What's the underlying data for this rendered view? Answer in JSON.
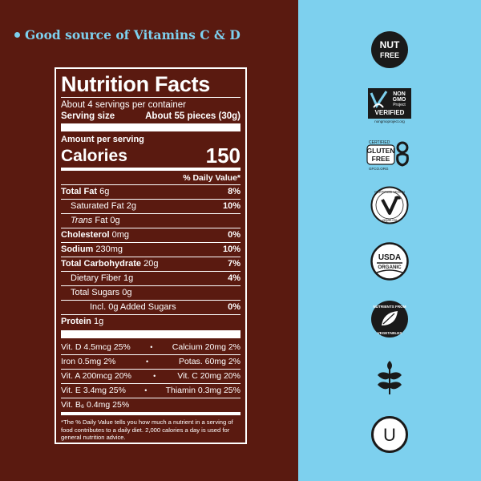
{
  "headline": "Good source of Vitamins C & D",
  "nutrition": {
    "title": "Nutrition Facts",
    "servings_per_container": "About 4 servings per container",
    "serving_size_label": "Serving size",
    "serving_size_value": "About 55 pieces (30g)",
    "amount_per_serving": "Amount per serving",
    "calories_label": "Calories",
    "calories_value": "150",
    "daily_value_header": "% Daily Value*",
    "rows": [
      {
        "name": "Total Fat",
        "amount": "6g",
        "dv": "8%"
      },
      {
        "name": "Saturated Fat",
        "amount": "2g",
        "dv": "10%"
      },
      {
        "name": "Trans",
        "name_suffix": "Fat",
        "amount": "0g",
        "dv": ""
      },
      {
        "name": "Cholesterol",
        "amount": "0mg",
        "dv": "0%"
      },
      {
        "name": "Sodium",
        "amount": "230mg",
        "dv": "10%"
      },
      {
        "name": "Total Carbohydrate",
        "amount": "20g",
        "dv": "7%"
      },
      {
        "name": "Dietary Fiber",
        "amount": "1g",
        "dv": "4%"
      },
      {
        "name": "Total Sugars",
        "amount": "0g",
        "dv": ""
      },
      {
        "name": "Incl. 0g Added Sugars",
        "amount": "",
        "dv": "0%"
      },
      {
        "name": "Protein",
        "amount": "1g",
        "dv": ""
      }
    ],
    "vitamins": [
      {
        "left": "Vit. D 4.5mcg 25%",
        "right": "Calcium 20mg 2%"
      },
      {
        "left": "Iron 0.5mg 2%",
        "right": "Potas. 60mg 2%"
      },
      {
        "left": "Vit. A 200mcg 20%",
        "right": "Vit. C 20mg 20%"
      },
      {
        "left": "Vit. E 3.4mg 25%",
        "right": "Thiamin 0.3mg 25%"
      },
      {
        "left": "Vit. B₆ 0.4mg 25%",
        "right": ""
      }
    ],
    "bullet": "•",
    "footnote": "*The % Daily Value tells you how much a nutrient in a serving of food contributes to a daily diet. 2,000 calories a day is used for general nutrition advice."
  },
  "badges": {
    "nut_free": {
      "line1": "NUT",
      "line2": "FREE"
    },
    "non_gmo": {
      "line1": "NON",
      "line2": "GMO",
      "line3": "Project",
      "line4": "VERIFIED",
      "line5": "nongmoproject.org"
    },
    "gluten_free": {
      "line1": "CERTIFIED",
      "line2": "GLUTEN",
      "line3": "FREE",
      "line4": "GFCO.ORG"
    },
    "vegan": {
      "top": "CERTIFIED VEGAN",
      "bottom": "vegan.org"
    },
    "usda": {
      "line1": "USDA",
      "line2": "ORGANIC"
    },
    "vegetables": {
      "top": "NUTRIENTS FROM",
      "bottom": "VEGETABLES"
    },
    "kosher": {
      "letter": "U"
    }
  },
  "colors": {
    "brown": "#5a1a10",
    "sky": "#7dd0ee",
    "white": "#ffffff",
    "black": "#1a1a1a"
  }
}
